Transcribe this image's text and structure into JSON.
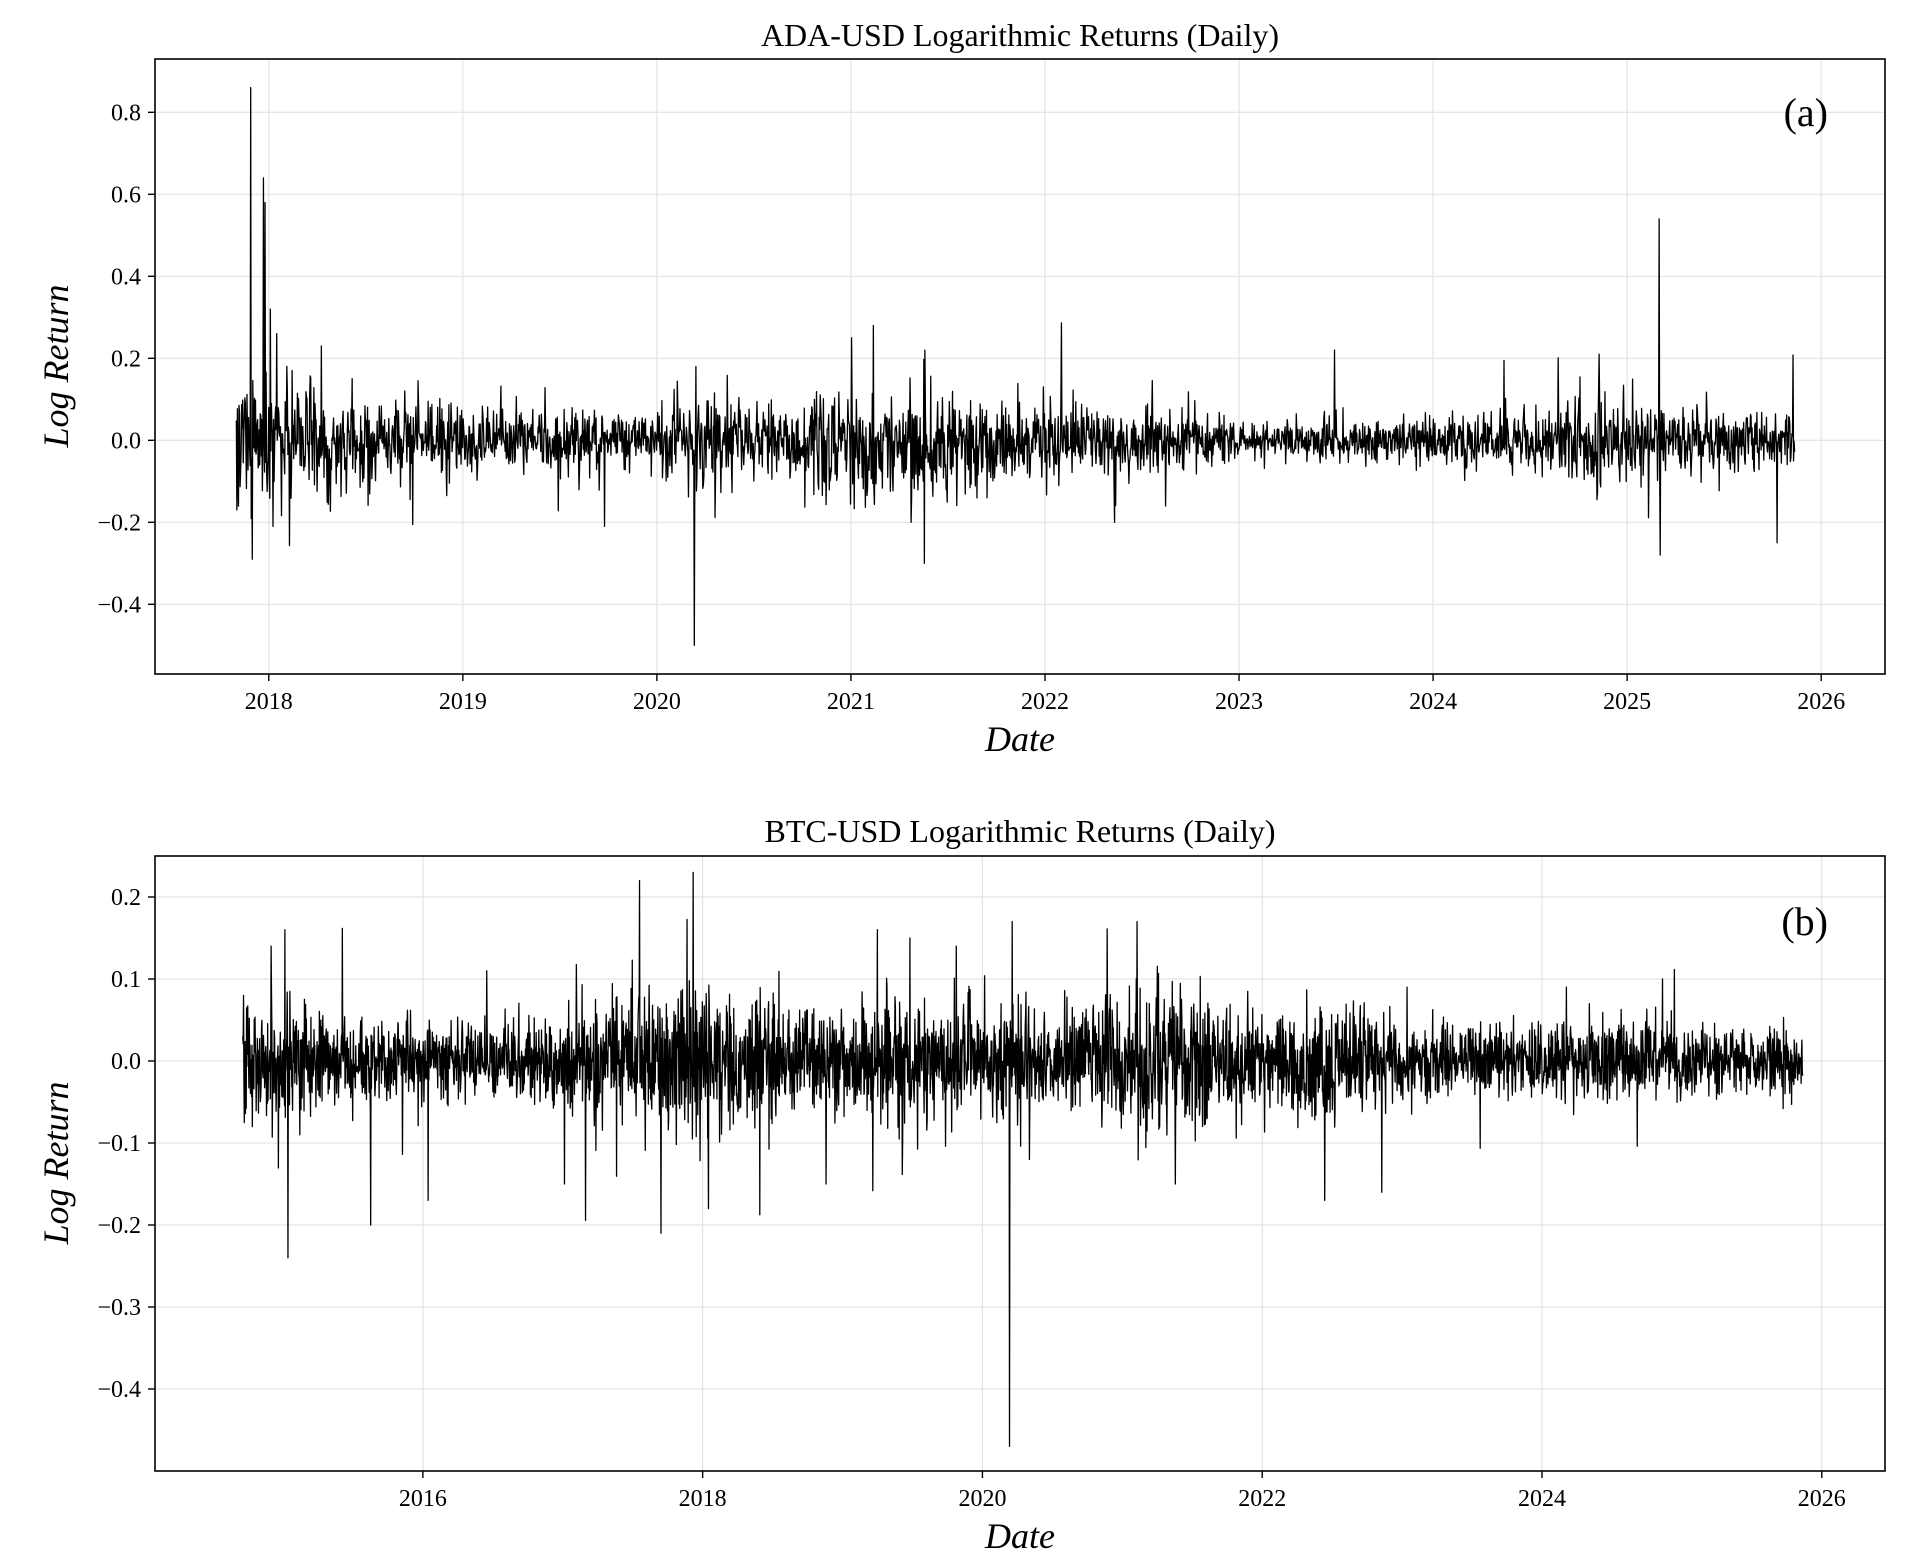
{
  "chart_data": [
    {
      "type": "line",
      "title": "ADA-USD Logarithmic Returns (Daily)",
      "panel_label": "(a)",
      "xlabel": "Date",
      "ylabel": "Log Return",
      "grid": true,
      "xlim": [
        "2017-06-01",
        "2026-05-01"
      ],
      "ylim": [
        -0.57,
        0.93
      ],
      "x_ticks": [
        "2018",
        "2019",
        "2020",
        "2021",
        "2022",
        "2023",
        "2024",
        "2025",
        "2026"
      ],
      "y_ticks": [
        "-0.4",
        "-0.2",
        "0.0",
        "0.2",
        "0.4",
        "0.6",
        "0.8"
      ],
      "start_date": "2017-11-01",
      "end_date": "2025-11-12",
      "volatility_profile": [
        [
          2017.83,
          0.1
        ],
        [
          2018.0,
          0.08
        ],
        [
          2018.3,
          0.06
        ],
        [
          2019.0,
          0.04
        ],
        [
          2019.5,
          0.04
        ],
        [
          2020.0,
          0.035
        ],
        [
          2020.25,
          0.06
        ],
        [
          2020.5,
          0.04
        ],
        [
          2021.0,
          0.07
        ],
        [
          2021.5,
          0.07
        ],
        [
          2021.7,
          0.05
        ],
        [
          2022.0,
          0.045
        ],
        [
          2022.5,
          0.045
        ],
        [
          2023.0,
          0.025
        ],
        [
          2023.8,
          0.025
        ],
        [
          2024.0,
          0.035
        ],
        [
          2024.5,
          0.035
        ],
        [
          2024.85,
          0.06
        ],
        [
          2025.0,
          0.045
        ],
        [
          2025.9,
          0.04
        ]
      ],
      "notable_points": [
        {
          "date": "2017-11-02",
          "value": -0.17
        },
        {
          "date": "2017-11-28",
          "value": 0.86
        },
        {
          "date": "2017-12-01",
          "value": -0.29
        },
        {
          "date": "2017-12-22",
          "value": 0.64
        },
        {
          "date": "2017-12-25",
          "value": 0.58
        },
        {
          "date": "2018-01-04",
          "value": 0.32
        },
        {
          "date": "2018-01-09",
          "value": -0.21
        },
        {
          "date": "2018-01-16",
          "value": 0.26
        },
        {
          "date": "2018-04-10",
          "value": 0.23
        },
        {
          "date": "2019-09-25",
          "value": -0.21
        },
        {
          "date": "2020-03-12",
          "value": -0.5
        },
        {
          "date": "2020-03-15",
          "value": 0.18
        },
        {
          "date": "2021-01-02",
          "value": 0.25
        },
        {
          "date": "2021-02-12",
          "value": 0.28
        },
        {
          "date": "2021-05-19",
          "value": -0.3
        },
        {
          "date": "2021-05-20",
          "value": 0.22
        },
        {
          "date": "2022-05-12",
          "value": -0.2
        },
        {
          "date": "2023-06-30",
          "value": 0.22
        },
        {
          "date": "2024-11-09",
          "value": 0.21
        },
        {
          "date": "2025-03-02",
          "value": 0.54
        },
        {
          "date": "2025-03-04",
          "value": -0.28
        },
        {
          "date": "2025-10-10",
          "value": -0.25
        }
      ]
    },
    {
      "type": "line",
      "title": "BTC-USD Logarithmic Returns (Daily)",
      "panel_label": "(b)",
      "xlabel": "Date",
      "ylabel": "Log Return",
      "grid": true,
      "xlim": [
        "2014-02-01",
        "2026-06-15"
      ],
      "ylim": [
        -0.5,
        0.25
      ],
      "x_ticks": [
        "2016",
        "2018",
        "2020",
        "2022",
        "2024",
        "2026"
      ],
      "y_ticks": [
        "-0.4",
        "-0.3",
        "-0.2",
        "-0.1",
        "0.0",
        "0.1",
        "0.2"
      ],
      "start_date": "2014-09-18",
      "end_date": "2025-11-12",
      "volatility_profile": [
        [
          2014.7,
          0.035
        ],
        [
          2015.2,
          0.035
        ],
        [
          2015.5,
          0.025
        ],
        [
          2016.0,
          0.025
        ],
        [
          2016.5,
          0.02
        ],
        [
          2017.0,
          0.03
        ],
        [
          2017.5,
          0.045
        ],
        [
          2018.0,
          0.05
        ],
        [
          2018.5,
          0.035
        ],
        [
          2019.0,
          0.025
        ],
        [
          2019.5,
          0.04
        ],
        [
          2020.0,
          0.03
        ],
        [
          2020.25,
          0.04
        ],
        [
          2020.5,
          0.025
        ],
        [
          2021.0,
          0.045
        ],
        [
          2021.5,
          0.04
        ],
        [
          2022.0,
          0.03
        ],
        [
          2022.5,
          0.035
        ],
        [
          2023.0,
          0.02
        ],
        [
          2024.0,
          0.025
        ],
        [
          2024.5,
          0.025
        ],
        [
          2025.0,
          0.022
        ],
        [
          2025.9,
          0.018
        ]
      ],
      "notable_points": [
        {
          "date": "2014-09-20",
          "value": 0.08
        },
        {
          "date": "2014-12-01",
          "value": 0.14
        },
        {
          "date": "2015-01-06",
          "value": 0.16
        },
        {
          "date": "2015-01-14",
          "value": -0.24
        },
        {
          "date": "2015-08-18",
          "value": -0.2
        },
        {
          "date": "2016-01-15",
          "value": -0.17
        },
        {
          "date": "2016-06-16",
          "value": 0.11
        },
        {
          "date": "2017-01-05",
          "value": -0.15
        },
        {
          "date": "2017-07-20",
          "value": 0.22
        },
        {
          "date": "2017-09-14",
          "value": -0.21
        },
        {
          "date": "2017-12-07",
          "value": 0.23
        },
        {
          "date": "2018-01-16",
          "value": -0.18
        },
        {
          "date": "2018-11-19",
          "value": -0.15
        },
        {
          "date": "2019-04-02",
          "value": 0.16
        },
        {
          "date": "2019-06-26",
          "value": 0.15
        },
        {
          "date": "2019-10-25",
          "value": 0.14
        },
        {
          "date": "2020-03-12",
          "value": -0.47
        },
        {
          "date": "2020-03-19",
          "value": 0.17
        },
        {
          "date": "2021-02-08",
          "value": 0.17
        },
        {
          "date": "2021-05-19",
          "value": -0.15
        },
        {
          "date": "2022-06-13",
          "value": -0.17
        },
        {
          "date": "2022-11-09",
          "value": -0.16
        },
        {
          "date": "2023-01-14",
          "value": 0.09
        },
        {
          "date": "2024-03-05",
          "value": 0.09
        },
        {
          "date": "2024-11-11",
          "value": 0.1
        }
      ]
    }
  ]
}
